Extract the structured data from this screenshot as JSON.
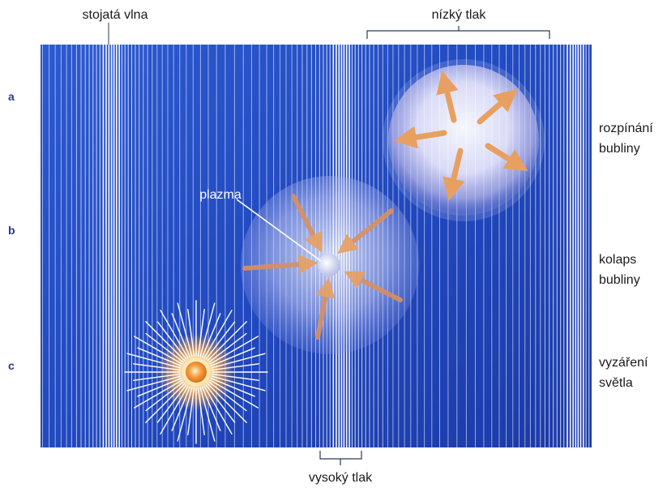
{
  "labels": {
    "standing_wave": "stojatá vlna",
    "low_pressure": "nízký tlak",
    "high_pressure": "vysoký tlak",
    "plasma": "plazma"
  },
  "rows": [
    {
      "letter": "a",
      "line1": "rozpínání",
      "line2": "bubliny"
    },
    {
      "letter": "b",
      "line1": "kolaps",
      "line2": "bubliny"
    },
    {
      "letter": "c",
      "line1": "vyzáření",
      "line2": "světla"
    }
  ],
  "colors": {
    "background": "#2a55c8",
    "background_dark": "#1b3aa8",
    "stripe": "#ffffff",
    "arrow": "#e8a060",
    "glow_core": "#f08a20",
    "bracket": "#2a3a5a"
  }
}
